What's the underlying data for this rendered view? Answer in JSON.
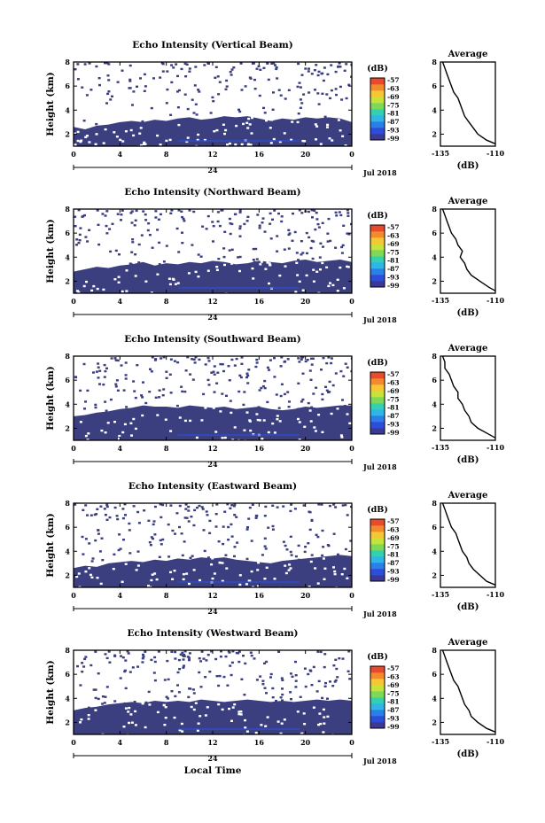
{
  "colors": {
    "background_fill": "#3b3f80",
    "colorbar": [
      "#3a3a95",
      "#2d4ed8",
      "#2b7fe8",
      "#2fb6e6",
      "#33d1b0",
      "#7ed957",
      "#c9e23a",
      "#f6c634",
      "#f48a2e",
      "#e84a2c"
    ]
  },
  "chart_data": [
    {
      "type": "heatmap",
      "title": "Echo Intensity (Vertical Beam)",
      "ylabel": "Height (km)",
      "xlabel": "",
      "x_ticks": [
        "0",
        "4",
        "8",
        "12",
        "16",
        "20",
        "0"
      ],
      "y_ticks": [
        "2",
        "4",
        "6",
        "8"
      ],
      "xlim": [
        0,
        24
      ],
      "ylim": [
        1,
        8
      ],
      "date_label": "24",
      "month_label": "Jul 2018",
      "colorbar": {
        "unit": "(dB)",
        "ticks": [
          "-57",
          "-63",
          "-69",
          "-75",
          "-81",
          "-87",
          "-93",
          "-99"
        ]
      },
      "fill_top_km": [
        2.6,
        2.4,
        2.7,
        2.8,
        3.0,
        3.1,
        3.0,
        3.2,
        3.1,
        3.3,
        3.4,
        3.2,
        3.3,
        3.5,
        3.4,
        3.5,
        3.3,
        3.1,
        3.3,
        3.2,
        3.4,
        3.3,
        3.4,
        3.3,
        3.0
      ],
      "average_profile": {
        "title": "Average",
        "xlabel": "(dB)",
        "x_ticks": [
          "-135",
          "-110"
        ],
        "xlim": [
          -135,
          -110
        ],
        "y_ticks": [
          "2",
          "4",
          "6",
          "8"
        ],
        "ylim": [
          1,
          8
        ],
        "height_km": [
          1.2,
          1.5,
          2.0,
          2.5,
          3.0,
          3.5,
          4.0,
          4.5,
          5.0,
          5.5,
          6.0,
          6.5,
          7.0,
          7.5,
          8.0
        ],
        "db": [
          -110,
          -114,
          -118,
          -120,
          -122,
          -124,
          -125,
          -126,
          -127,
          -129,
          -130,
          -131,
          -132,
          -133,
          -134
        ]
      }
    },
    {
      "type": "heatmap",
      "title": "Echo Intensity (Northward Beam)",
      "ylabel": "Height (km)",
      "xlabel": "",
      "x_ticks": [
        "0",
        "4",
        "8",
        "12",
        "16",
        "20",
        "0"
      ],
      "y_ticks": [
        "2",
        "4",
        "6",
        "8"
      ],
      "xlim": [
        0,
        24
      ],
      "ylim": [
        1,
        8
      ],
      "date_label": "24",
      "month_label": "Jul 2018",
      "colorbar": {
        "unit": "(dB)",
        "ticks": [
          "-57",
          "-63",
          "-69",
          "-75",
          "-81",
          "-87",
          "-93",
          "-99"
        ]
      },
      "fill_top_km": [
        2.8,
        3.0,
        3.2,
        3.1,
        3.3,
        3.4,
        3.6,
        3.3,
        3.5,
        3.4,
        3.6,
        3.5,
        3.7,
        3.6,
        3.4,
        3.5,
        3.7,
        3.6,
        3.5,
        3.7,
        3.8,
        3.6,
        3.7,
        3.8,
        3.6
      ],
      "average_profile": {
        "title": "Average",
        "xlabel": "(dB)",
        "x_ticks": [
          "-135",
          "-110"
        ],
        "xlim": [
          -135,
          -110
        ],
        "y_ticks": [
          "2",
          "4",
          "6",
          "8"
        ],
        "ylim": [
          1,
          8
        ],
        "height_km": [
          1.2,
          1.5,
          2.0,
          2.5,
          3.0,
          3.5,
          4.0,
          4.5,
          5.0,
          5.5,
          6.0,
          6.5,
          7.0,
          7.5,
          8.0
        ],
        "db": [
          -110,
          -113,
          -117,
          -121,
          -123,
          -124,
          -126,
          -125,
          -127,
          -128,
          -130,
          -131,
          -132,
          -133,
          -134
        ]
      }
    },
    {
      "type": "heatmap",
      "title": "Echo Intensity (Southward Beam)",
      "ylabel": "Height (km)",
      "xlabel": "",
      "x_ticks": [
        "0",
        "4",
        "8",
        "12",
        "16",
        "20",
        "0"
      ],
      "y_ticks": [
        "2",
        "4",
        "6",
        "8"
      ],
      "xlim": [
        0,
        24
      ],
      "ylim": [
        1,
        8
      ],
      "date_label": "24",
      "month_label": "Jul 2018",
      "colorbar": {
        "unit": "(dB)",
        "ticks": [
          "-57",
          "-63",
          "-69",
          "-75",
          "-81",
          "-87",
          "-93",
          "-99"
        ]
      },
      "fill_top_km": [
        3.0,
        3.1,
        3.3,
        3.4,
        3.6,
        3.7,
        3.9,
        3.8,
        3.8,
        3.7,
        3.9,
        3.8,
        3.7,
        3.8,
        3.6,
        3.7,
        3.8,
        3.6,
        3.5,
        3.6,
        3.8,
        3.7,
        3.8,
        3.9,
        3.9
      ],
      "average_profile": {
        "title": "Average",
        "xlabel": "(dB)",
        "x_ticks": [
          "-135",
          "-110"
        ],
        "xlim": [
          -135,
          -110
        ],
        "y_ticks": [
          "2",
          "4",
          "6",
          "8"
        ],
        "ylim": [
          1,
          8
        ],
        "height_km": [
          1.2,
          1.5,
          2.0,
          2.5,
          3.0,
          3.5,
          4.0,
          4.5,
          5.0,
          5.5,
          6.0,
          6.5,
          7.0,
          7.5,
          8.0
        ],
        "db": [
          -110,
          -113,
          -118,
          -121,
          -122,
          -124,
          -125,
          -127,
          -127,
          -129,
          -130,
          -131,
          -133,
          -133,
          -134
        ]
      }
    },
    {
      "type": "heatmap",
      "title": "Echo Intensity (Eastward Beam)",
      "ylabel": "Height (km)",
      "xlabel": "",
      "x_ticks": [
        "0",
        "4",
        "8",
        "12",
        "16",
        "20",
        "0"
      ],
      "y_ticks": [
        "2",
        "4",
        "6",
        "8"
      ],
      "xlim": [
        0,
        24
      ],
      "ylim": [
        1,
        8
      ],
      "date_label": "24",
      "month_label": "Jul 2018",
      "colorbar": {
        "unit": "(dB)",
        "ticks": [
          "-57",
          "-63",
          "-69",
          "-75",
          "-81",
          "-87",
          "-93",
          "-99"
        ]
      },
      "fill_top_km": [
        2.6,
        2.8,
        2.7,
        3.0,
        3.1,
        3.2,
        3.1,
        3.3,
        3.2,
        3.4,
        3.3,
        3.5,
        3.4,
        3.5,
        3.3,
        3.2,
        3.1,
        3.0,
        3.2,
        3.3,
        3.4,
        3.5,
        3.6,
        3.7,
        3.6
      ],
      "average_profile": {
        "title": "Average",
        "xlabel": "(dB)",
        "x_ticks": [
          "-135",
          "-110"
        ],
        "xlim": [
          -135,
          -110
        ],
        "y_ticks": [
          "2",
          "4",
          "6",
          "8"
        ],
        "ylim": [
          1,
          8
        ],
        "height_km": [
          1.2,
          1.5,
          2.0,
          2.5,
          3.0,
          3.5,
          4.0,
          4.5,
          5.0,
          5.5,
          6.0,
          6.5,
          7.0,
          7.5,
          8.0
        ],
        "db": [
          -110,
          -114,
          -117,
          -120,
          -122,
          -123,
          -125,
          -126,
          -127,
          -128,
          -130,
          -131,
          -132,
          -133,
          -134
        ]
      }
    },
    {
      "type": "heatmap",
      "title": "Echo Intensity (Westward Beam)",
      "ylabel": "Height (km)",
      "xlabel": "Local Time",
      "x_ticks": [
        "0",
        "4",
        "8",
        "12",
        "16",
        "20",
        "0"
      ],
      "y_ticks": [
        "2",
        "4",
        "6",
        "8"
      ],
      "xlim": [
        0,
        24
      ],
      "ylim": [
        1,
        8
      ],
      "date_label": "24",
      "month_label": "Jul 2018",
      "colorbar": {
        "unit": "(dB)",
        "ticks": [
          "-57",
          "-63",
          "-69",
          "-75",
          "-81",
          "-87",
          "-93",
          "-99"
        ]
      },
      "fill_top_km": [
        3.0,
        3.2,
        3.3,
        3.5,
        3.6,
        3.7,
        3.6,
        3.8,
        3.7,
        3.8,
        3.7,
        3.9,
        3.8,
        3.7,
        3.8,
        3.9,
        3.8,
        3.7,
        3.8,
        3.7,
        3.8,
        3.9,
        3.8,
        3.9,
        3.8
      ],
      "average_profile": {
        "title": "Average",
        "xlabel": "(dB)",
        "x_ticks": [
          "-135",
          "-110"
        ],
        "xlim": [
          -135,
          -110
        ],
        "y_ticks": [
          "2",
          "4",
          "6",
          "8"
        ],
        "ylim": [
          1,
          8
        ],
        "height_km": [
          1.2,
          1.5,
          2.0,
          2.5,
          3.0,
          3.5,
          4.0,
          4.5,
          5.0,
          5.5,
          6.0,
          6.5,
          7.0,
          7.5,
          8.0
        ],
        "db": [
          -110,
          -114,
          -118,
          -121,
          -122,
          -124,
          -125,
          -126,
          -127,
          -129,
          -130,
          -131,
          -132,
          -133,
          -134
        ]
      }
    }
  ]
}
